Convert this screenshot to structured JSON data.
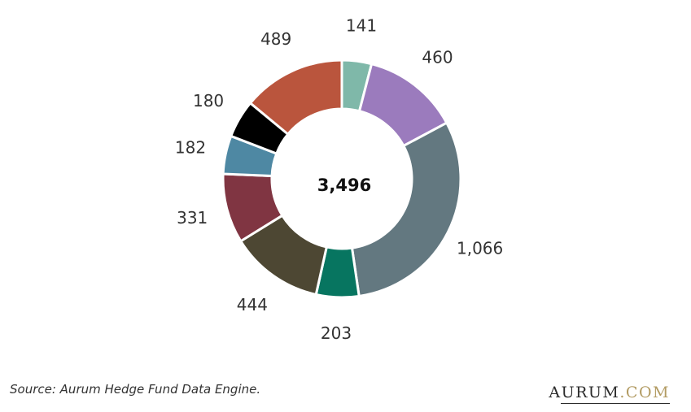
{
  "chart_data": {
    "type": "pie",
    "donut": true,
    "center_label": "3,496",
    "slices": [
      {
        "label": "141",
        "value": 141,
        "color": "#7fb8a9"
      },
      {
        "label": "460",
        "value": 460,
        "color": "#9b7bbd"
      },
      {
        "label": "1,066",
        "value": 1066,
        "color": "#637880"
      },
      {
        "label": "203",
        "value": 203,
        "color": "#077560"
      },
      {
        "label": "444",
        "value": 444,
        "color": "#4d4733"
      },
      {
        "label": "331",
        "value": 331,
        "color": "#803542"
      },
      {
        "label": "182",
        "value": 182,
        "color": "#4e88a3"
      },
      {
        "label": "180",
        "value": 180,
        "color": "#000000"
      },
      {
        "label": "489",
        "value": 489,
        "color": "#ba553d"
      }
    ]
  },
  "footer": {
    "source": "Source: Aurum Hedge Fund Data Engine.",
    "brand_name": "AURUM",
    "brand_domain": ".COM"
  }
}
